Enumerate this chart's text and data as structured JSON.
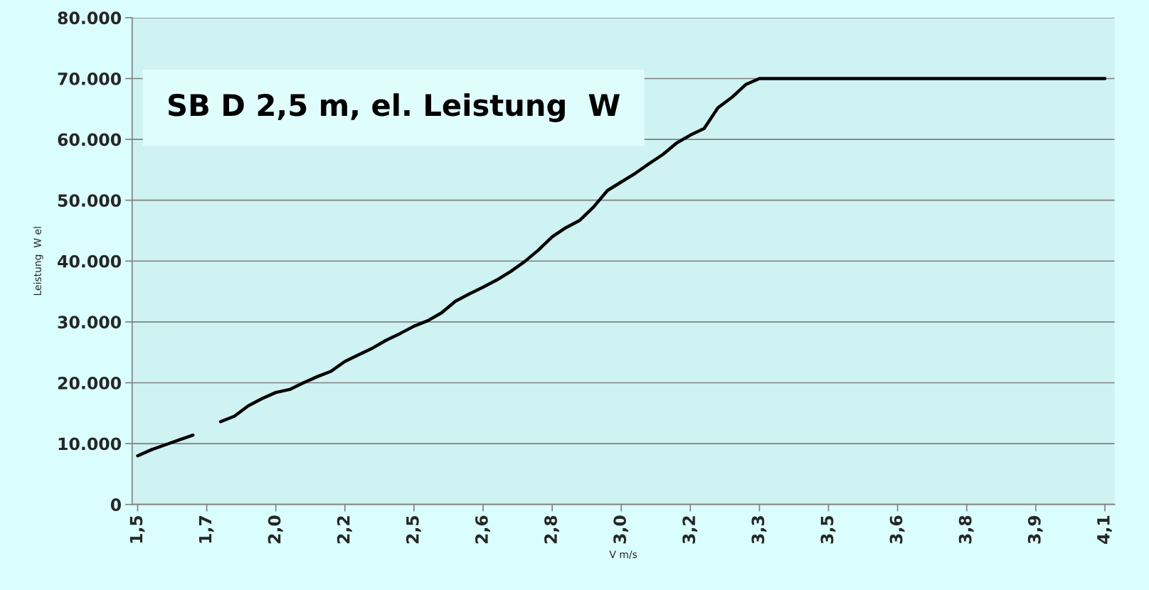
{
  "chart_data": {
    "type": "line",
    "title": "SB D 2,5 m, el. Leistung  W",
    "xlabel": "V m/s",
    "ylabel": "Leistung  W el",
    "categories": [
      "1,5",
      null,
      null,
      null,
      null,
      "1,7",
      null,
      null,
      null,
      null,
      "2,0",
      null,
      null,
      null,
      null,
      "2,2",
      null,
      null,
      null,
      null,
      "2,5",
      null,
      null,
      null,
      null,
      "2,6",
      null,
      null,
      null,
      null,
      "2,8",
      null,
      null,
      null,
      null,
      "3,0",
      null,
      null,
      null,
      null,
      "3,2",
      null,
      null,
      null,
      null,
      "3,3",
      null,
      null,
      null,
      null,
      "3,5",
      null,
      null,
      null,
      null,
      "3,6",
      null,
      null,
      null,
      null,
      "3,8",
      null,
      null,
      null,
      null,
      "3,9",
      null,
      null,
      null,
      null,
      "4,1"
    ],
    "series": [
      {
        "color": "#000000",
        "values": [
          8000,
          9000,
          9800,
          10600,
          11400,
          null,
          13600,
          14500,
          16200,
          17400,
          18400,
          18900,
          20000,
          21000,
          21900,
          23500,
          24600,
          25700,
          27000,
          28100,
          29300,
          30200,
          31500,
          33400,
          34600,
          35700,
          36900,
          38300,
          39900,
          41800,
          44000,
          45500,
          46700,
          48900,
          51600,
          53000,
          54400,
          56000,
          57500,
          59400,
          60700,
          61800,
          65200,
          66900,
          69000,
          70000,
          70000,
          70000,
          70000,
          70000,
          70000,
          70000,
          70000,
          70000,
          70000,
          70000,
          70000,
          70000,
          70000,
          70000,
          70000,
          70000,
          70000,
          70000,
          70000,
          70000,
          70000,
          70000,
          70000,
          70000,
          70000
        ]
      }
    ],
    "ylim": [
      0,
      80000
    ],
    "yticks": [
      0,
      {
        "value": 10000,
        "label": "10.000"
      },
      {
        "value": 20000,
        "label": "20.000"
      },
      {
        "value": 30000,
        "label": "30.000"
      },
      {
        "value": 40000,
        "label": "40.000"
      },
      {
        "value": 50000,
        "label": "50.000"
      },
      {
        "value": 60000,
        "label": "60.000"
      },
      {
        "value": 70000,
        "label": "70.000"
      },
      {
        "value": 80000,
        "label": "80.000"
      }
    ],
    "grid": "y",
    "marker": "none",
    "line_style": "solid"
  }
}
